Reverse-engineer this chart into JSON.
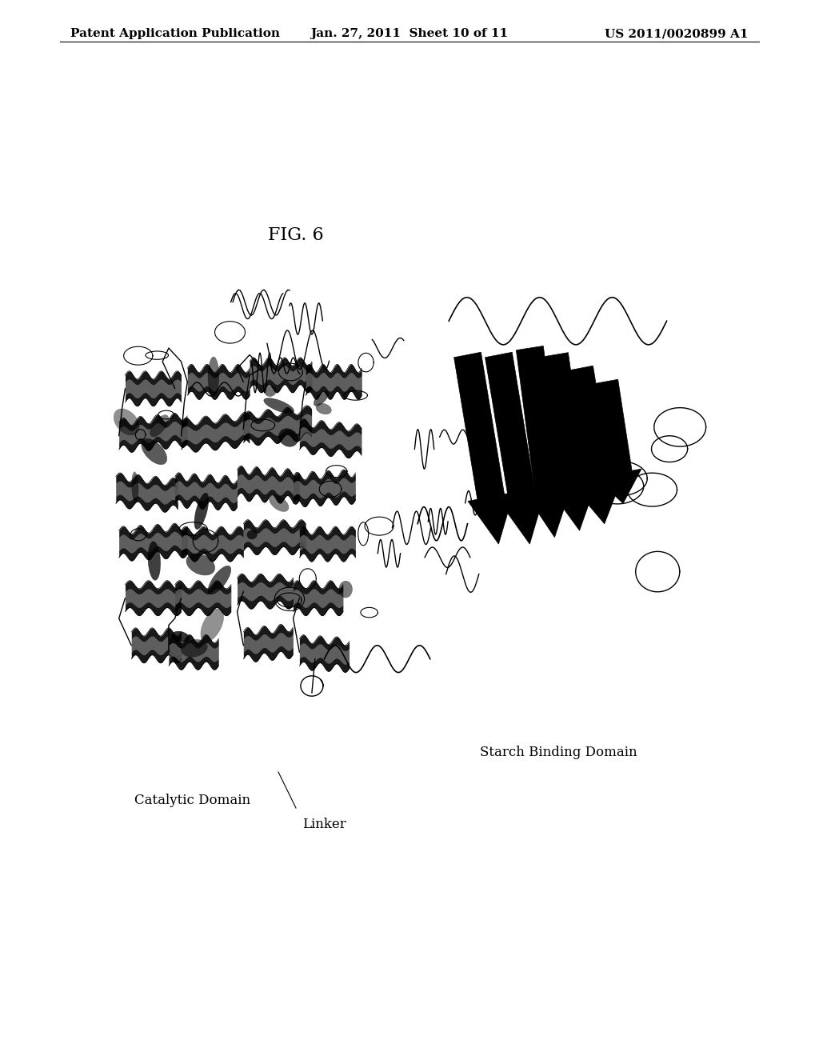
{
  "background_color": "#ffffff",
  "header_left": "Patent Application Publication",
  "header_center": "Jan. 27, 2011  Sheet 10 of 11",
  "header_right": "US 2011/0020899 A1",
  "header_fontsize": 11,
  "fig_label": "FIG. 6",
  "fig_label_fontsize": 16,
  "label_catalytic": "Catalytic Domain",
  "label_linker": "Linker",
  "label_starch": "Starch Binding Domain",
  "annotation_fontsize": 12
}
